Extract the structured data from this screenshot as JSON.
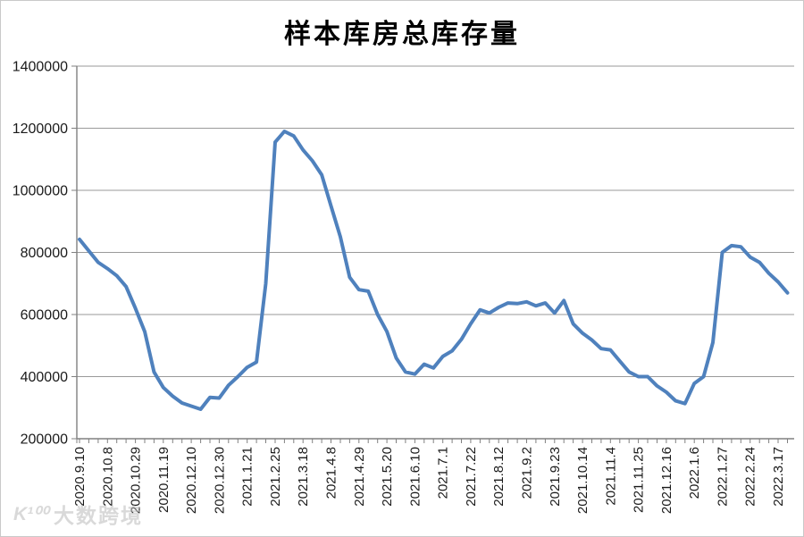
{
  "chart_data": {
    "type": "line",
    "title": "样本库房总库存量",
    "xlabel": "",
    "ylabel": "",
    "ylim": [
      200000,
      1400000
    ],
    "ytick_step": 200000,
    "ytick_labels": [
      200000,
      400000,
      600000,
      800000,
      1000000,
      1200000,
      1400000
    ],
    "grid": "horizontal",
    "legend_position": "none",
    "line_color": "#4F81BD",
    "points_per_label": 3,
    "categories": [
      "2020.9.10",
      "2020.10.8",
      "2020.10.29",
      "2020.11.19",
      "2020.12.10",
      "2020.12.30",
      "2021.1.21",
      "2021.2.25",
      "2021.3.18",
      "2021.4.8",
      "2021.4.29",
      "2021.5.20",
      "2021.6.10",
      "2021.7.1",
      "2021.7.22",
      "2021.8.12",
      "2021.9.2",
      "2021.9.23",
      "2021.10.14",
      "2021.11.4",
      "2021.11.25",
      "2021.12.16",
      "2022.1.6",
      "2022.1.27",
      "2022.2.24",
      "2022.3.17"
    ],
    "series": [
      {
        "name": "样本库房总库存量",
        "values": [
          842000,
          805000,
          768000,
          748000,
          725000,
          690000,
          620000,
          545000,
          415000,
          365000,
          337000,
          315000,
          305000,
          295000,
          333000,
          331000,
          372000,
          400000,
          430000,
          447000,
          700000,
          1155000,
          1190000,
          1175000,
          1130000,
          1095000,
          1050000,
          950000,
          850000,
          720000,
          680000,
          675000,
          600000,
          545000,
          460000,
          415000,
          408000,
          440000,
          428000,
          465000,
          483000,
          520000,
          570000,
          615000,
          605000,
          623000,
          637000,
          635000,
          641000,
          628000,
          637000,
          605000,
          645000,
          570000,
          540000,
          518000,
          490000,
          486000,
          450000,
          415000,
          400000,
          400000,
          370000,
          350000,
          322000,
          313000,
          378000,
          400000,
          510000,
          800000,
          822000,
          818000,
          785000,
          768000,
          733000,
          705000,
          670000
        ]
      }
    ]
  },
  "watermark": {
    "logo_text": "K¹⁰⁰",
    "text": "大数跨境"
  }
}
